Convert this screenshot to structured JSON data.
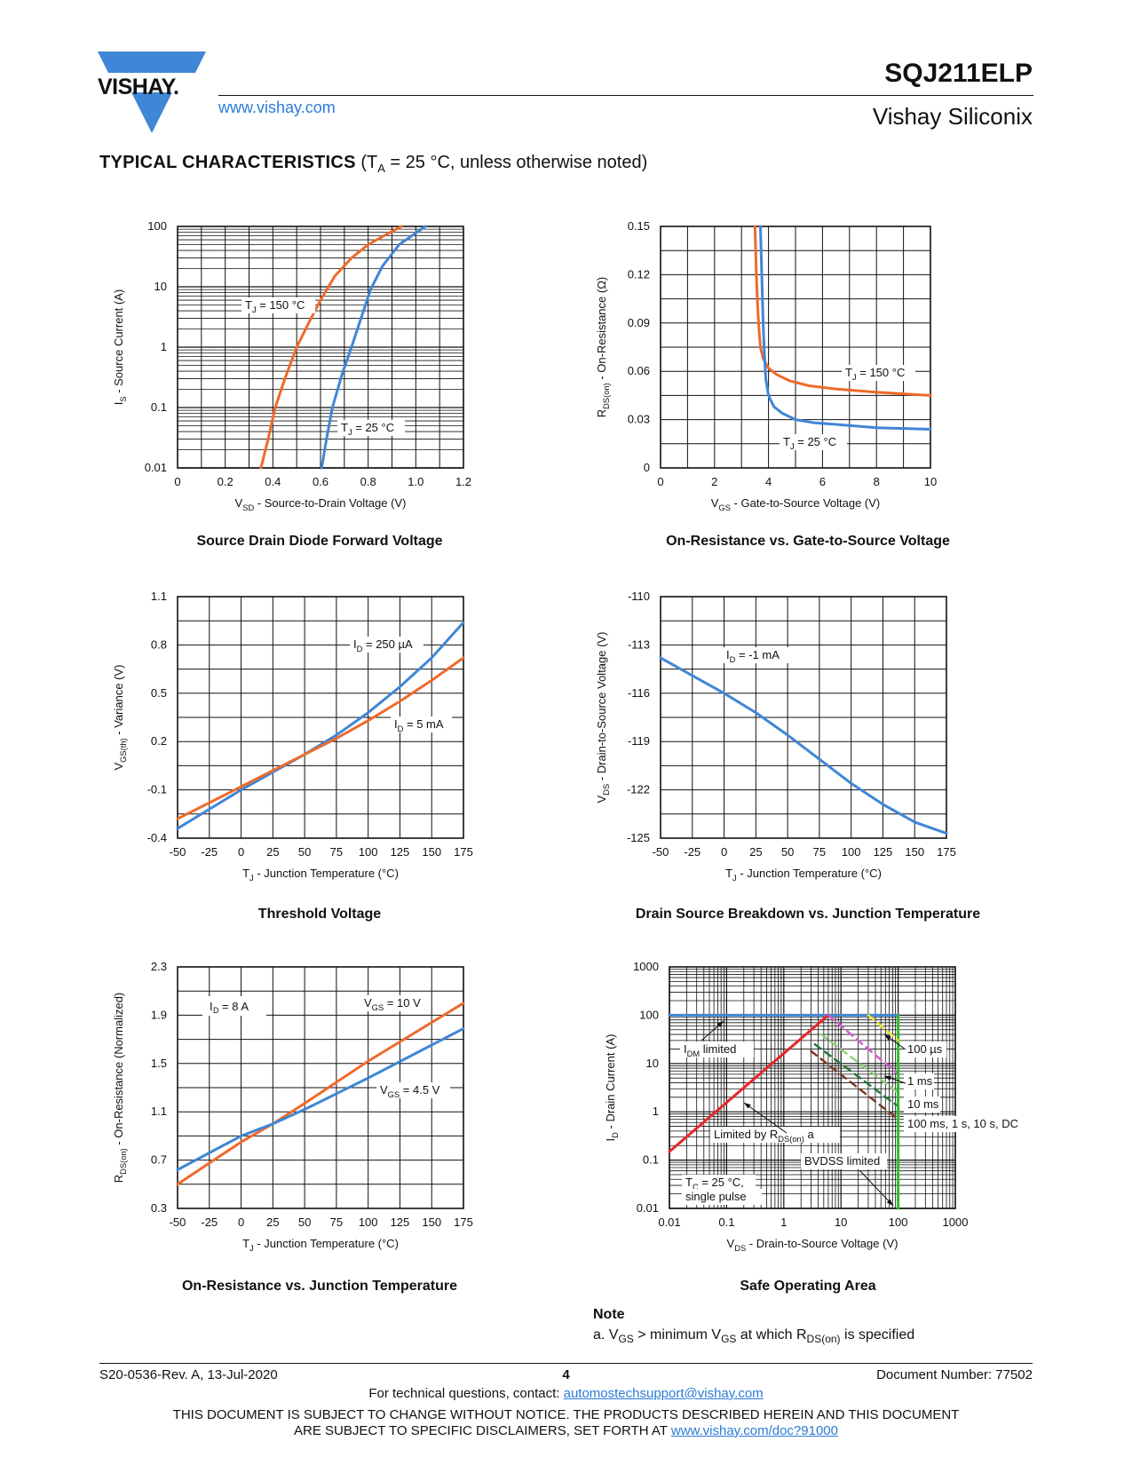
{
  "header": {
    "logo_text": "VISHAY.",
    "website": "www.vishay.com",
    "part_number": "SQJ211ELP",
    "company": "Vishay Siliconix"
  },
  "section": {
    "title_bold": "TYPICAL CHARACTERISTICS",
    "title_rest_pre": " (T",
    "title_sub": "A",
    "title_rest_post": " = 25 °C, unless otherwise noted)"
  },
  "colors": {
    "orange": "#ef6a2a",
    "blue": "#3f86d6",
    "red": "#e8262b",
    "green": "#2dbb2d",
    "link": "#2b7bd6"
  },
  "chart_data": [
    {
      "id": "diode",
      "type": "line",
      "title": "Source Drain Diode Forward Voltage",
      "xlabel": "V_SD - Source-to-Drain Voltage (V)",
      "ylabel": "I_S - Source Current (A)",
      "xlim": [
        0,
        1.2
      ],
      "ylim": [
        0.01,
        100
      ],
      "yscale": "log",
      "xticks": [
        "0",
        "0.2",
        "0.4",
        "0.6",
        "0.8",
        "1.0",
        "1.2"
      ],
      "yticks": [
        "0.01",
        "0.1",
        "1",
        "10",
        "100"
      ],
      "series": [
        {
          "name": "T_J = 150 °C",
          "color": "orange",
          "x": [
            0.35,
            0.38,
            0.41,
            0.45,
            0.5,
            0.55,
            0.6,
            0.66,
            0.73,
            0.8,
            0.88,
            0.94
          ],
          "y": [
            0.01,
            0.03,
            0.1,
            0.3,
            1,
            2.5,
            6,
            15,
            30,
            50,
            75,
            100
          ]
        },
        {
          "name": "T_J = 25 °C",
          "color": "blue",
          "x": [
            0.605,
            0.625,
            0.65,
            0.69,
            0.73,
            0.77,
            0.81,
            0.86,
            0.93,
            1.04
          ],
          "y": [
            0.01,
            0.03,
            0.1,
            0.35,
            1,
            3,
            9,
            22,
            50,
            100
          ]
        }
      ]
    },
    {
      "id": "rdson-vgs",
      "type": "line",
      "title": "On-Resistance vs. Gate-to-Source Voltage",
      "xlabel": "V_GS - Gate-to-Source Voltage (V)",
      "ylabel": "R_DS(on) - On-Resistance (Ω)",
      "xlim": [
        0,
        10
      ],
      "ylim": [
        0,
        0.15
      ],
      "xticks": [
        "0",
        "2",
        "4",
        "6",
        "8",
        "10"
      ],
      "yticks": [
        "0",
        "0.03",
        "0.06",
        "0.09",
        "0.12",
        "0.15"
      ],
      "series": [
        {
          "name": "T_J = 150 °C",
          "color": "orange",
          "x": [
            3.5,
            3.55,
            3.6,
            3.65,
            3.7,
            3.8,
            4.0,
            4.3,
            4.8,
            5.5,
            6.5,
            8.0,
            10.0
          ],
          "y": [
            0.15,
            0.12,
            0.1,
            0.085,
            0.075,
            0.068,
            0.062,
            0.058,
            0.054,
            0.051,
            0.049,
            0.047,
            0.045
          ]
        },
        {
          "name": "T_J = 25 °C",
          "color": "blue",
          "x": [
            3.7,
            3.75,
            3.8,
            3.85,
            3.9,
            4.0,
            4.2,
            4.5,
            5.0,
            5.7,
            6.5,
            8.0,
            10.0
          ],
          "y": [
            0.15,
            0.12,
            0.09,
            0.07,
            0.055,
            0.045,
            0.038,
            0.034,
            0.03,
            0.028,
            0.027,
            0.025,
            0.024
          ]
        }
      ]
    },
    {
      "id": "threshold",
      "type": "line",
      "title": "Threshold Voltage",
      "xlabel": "T_J - Junction Temperature (°C)",
      "ylabel": "V_GS(th) - Variance (V)",
      "xlim": [
        -50,
        175
      ],
      "ylim": [
        -0.4,
        1.1
      ],
      "xticks": [
        "-50",
        "-25",
        "0",
        "25",
        "50",
        "75",
        "100",
        "125",
        "150",
        "175"
      ],
      "yticks": [
        "-0.4",
        "-0.1",
        "0.2",
        "0.5",
        "0.8",
        "1.1"
      ],
      "series": [
        {
          "name": "I_D = 250 µA",
          "color": "blue",
          "x": [
            -50,
            -25,
            0,
            25,
            50,
            75,
            100,
            125,
            150,
            175
          ],
          "y": [
            -0.34,
            -0.22,
            -0.1,
            0.01,
            0.12,
            0.24,
            0.38,
            0.54,
            0.72,
            0.94
          ]
        },
        {
          "name": "I_D = 5 mA",
          "color": "orange",
          "x": [
            -50,
            -25,
            0,
            25,
            50,
            75,
            100,
            125,
            150,
            175
          ],
          "y": [
            -0.28,
            -0.18,
            -0.08,
            0.02,
            0.12,
            0.22,
            0.33,
            0.45,
            0.58,
            0.72
          ]
        }
      ]
    },
    {
      "id": "breakdown",
      "type": "line",
      "title": "Drain Source Breakdown vs. Junction Temperature",
      "xlabel": "T_J - Junction Temperature (°C)",
      "ylabel": "V_DS - Drain-to-Source Voltage (V)",
      "xlim": [
        -50,
        175
      ],
      "ylim": [
        -125,
        -110
      ],
      "xticks": [
        "-50",
        "-25",
        "0",
        "25",
        "50",
        "75",
        "100",
        "125",
        "150",
        "175"
      ],
      "yticks": [
        "-125",
        "-122",
        "-119",
        "-116",
        "-113",
        "-110"
      ],
      "series": [
        {
          "name": "I_D = -1 mA",
          "color": "blue",
          "x": [
            -50,
            -25,
            0,
            25,
            50,
            75,
            100,
            125,
            150,
            175
          ],
          "y": [
            -113.8,
            -114.9,
            -116.0,
            -117.2,
            -118.6,
            -120.1,
            -121.6,
            -122.9,
            -124.0,
            -124.7
          ]
        }
      ]
    },
    {
      "id": "rdson-tj",
      "type": "line",
      "title": "On-Resistance vs. Junction Temperature",
      "xlabel": "T_J - Junction Temperature (°C)",
      "ylabel": "R_DS(on) - On-Resistance (Normalized)",
      "xlim": [
        -50,
        175
      ],
      "ylim": [
        0.3,
        2.3
      ],
      "xticks": [
        "-50",
        "-25",
        "0",
        "25",
        "50",
        "75",
        "100",
        "125",
        "150",
        "175"
      ],
      "yticks": [
        "0.3",
        "0.7",
        "1.1",
        "1.5",
        "1.9",
        "2.3"
      ],
      "series": [
        {
          "name": "V_GS = 10 V",
          "color": "orange",
          "x": [
            -50,
            0,
            25,
            50,
            100,
            175
          ],
          "y": [
            0.5,
            0.85,
            1.0,
            1.17,
            1.52,
            2.0
          ]
        },
        {
          "name": "V_GS = 4.5 V",
          "color": "blue",
          "x": [
            -50,
            0,
            25,
            50,
            100,
            175
          ],
          "y": [
            0.62,
            0.9,
            1.0,
            1.12,
            1.38,
            1.79
          ]
        }
      ]
    },
    {
      "id": "soa",
      "type": "line",
      "title": "Safe Operating Area",
      "xlabel": "V_DS - Drain-to-Source Voltage (V)",
      "ylabel": "I_D - Drain Current (A)",
      "xlim": [
        0.01,
        1000
      ],
      "ylim": [
        0.01,
        1000
      ],
      "xscale": "log",
      "yscale": "log",
      "xticks": [
        "0.01",
        "0.1",
        "1",
        "10",
        "100",
        "1000"
      ],
      "yticks": [
        "0.01",
        "0.1",
        "1",
        "10",
        "100",
        "1000"
      ],
      "series": [
        {
          "name": "I_DM limited",
          "color": "blue",
          "x": [
            0.01,
            100
          ],
          "y": [
            100,
            100
          ]
        },
        {
          "name": "Limited by R_DS(on)",
          "color": "red",
          "x": [
            0.01,
            6
          ],
          "y": [
            0.15,
            100
          ]
        },
        {
          "name": "100 µs",
          "color": "#d35bd3",
          "x": [
            6,
            100
          ],
          "y": [
            100,
            6
          ]
        },
        {
          "name": "1 ms",
          "color": "#8fd07a",
          "x": [
            4.5,
            100
          ],
          "y": [
            40,
            2.5
          ]
        },
        {
          "name": "10 ms",
          "color": "#1f7a3a",
          "x": [
            3.5,
            100
          ],
          "y": [
            25,
            1.3
          ]
        },
        {
          "name": "100 ms, 1 s, 10 s, DC",
          "color": "#7a3a1f",
          "x": [
            3.0,
            100
          ],
          "y": [
            18,
            0.7
          ]
        },
        {
          "name": "BVDSS limited",
          "color": "green",
          "x": [
            100,
            100
          ],
          "y": [
            0.01,
            100
          ]
        },
        {
          "name": "yellow",
          "color": "#e5e52d",
          "x": [
            30,
            100
          ],
          "y": [
            100,
            30
          ]
        }
      ],
      "annotations": [
        "I_DM limited",
        "100 µs",
        "1 ms",
        "10 ms",
        "100 ms, 1 s, 10 s, DC",
        "Limited by R_DS(on) a",
        "BVDSS limited",
        "T_C = 25 °C,",
        "single pulse"
      ]
    }
  ],
  "captions": {
    "diode": "Source Drain Diode Forward Voltage",
    "rdson_vgs": "On-Resistance vs. Gate-to-Source Voltage",
    "threshold": "Threshold Voltage",
    "breakdown": "Drain Source Breakdown vs. Junction Temperature",
    "rdson_tj": "On-Resistance vs. Junction Temperature",
    "soa": "Safe Operating Area"
  },
  "note": {
    "heading": "Note",
    "a_prefix": "a.  V",
    "a_sub1": "GS",
    "a_mid": " > minimum V",
    "a_sub2": "GS",
    "a_mid2": " at which R",
    "a_sub3": "DS(on)",
    "a_end": " is specified"
  },
  "footer": {
    "revision": "S20-0536-Rev. A, 13-Jul-2020",
    "page": "4",
    "document_number": "Document Number: 77502",
    "contact_pre": "For technical questions, contact: ",
    "contact_email": "automostechsupport@vishay.com",
    "legal_line1": "THIS DOCUMENT IS SUBJECT TO CHANGE WITHOUT NOTICE. THE PRODUCTS DESCRIBED HEREIN AND THIS DOCUMENT",
    "legal_line2_pre": "ARE SUBJECT TO SPECIFIC DISCLAIMERS, SET FORTH AT ",
    "legal_link": "www.vishay.com/doc?91000"
  }
}
